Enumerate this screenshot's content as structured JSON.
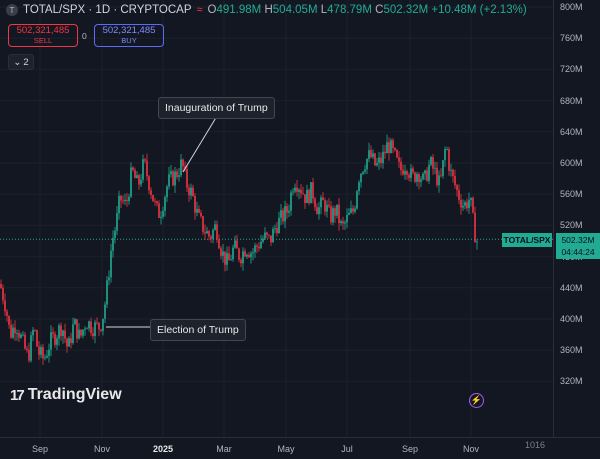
{
  "header": {
    "symbol_icon": "T",
    "title": "TOTAL/SPX · 1D · CRYPTOCAP",
    "wave_icon": "≈",
    "open_label": "O",
    "open": "491.98M",
    "high_label": "H",
    "high": "504.05M",
    "low_label": "L",
    "low": "478.79M",
    "close_label": "C",
    "close": "502.32M",
    "change": "+10.48M (+2.13%)"
  },
  "trade": {
    "sell_price": "502,321,485",
    "sell_label": "SELL",
    "spread": "0",
    "buy_price": "502,321,485",
    "buy_label": "BUY"
  },
  "indicators_toggle": "2",
  "annotations": {
    "inauguration": "Inauguration of Trump",
    "election": "Election of Trump"
  },
  "price_axis": {
    "ticks": [
      "800M",
      "760M",
      "720M",
      "680M",
      "640M",
      "600M",
      "560M",
      "520M",
      "480M",
      "440M",
      "400M",
      "360M",
      "320M"
    ],
    "symbol_label": "TOTAL/SPX",
    "current_price": "502.32M",
    "countdown": "04:44:24"
  },
  "time_axis": {
    "ticks": [
      "Sep",
      "Nov",
      "2025",
      "Mar",
      "May",
      "Jul",
      "Sep",
      "Nov"
    ]
  },
  "logo": {
    "text": "TradingView",
    "mark": "17"
  },
  "corner_mark": "1016",
  "colors": {
    "up": "#22ab94",
    "down": "#f23645",
    "background": "#131722",
    "accent": "#2962ff"
  },
  "chart_data": {
    "type": "candlestick",
    "ylim": [
      310,
      800
    ],
    "y_ticks": [
      320,
      360,
      400,
      440,
      480,
      520,
      560,
      600,
      640,
      680,
      720,
      760,
      800
    ],
    "x_ticks": [
      "Sep",
      "Nov",
      "2025",
      "Mar",
      "May",
      "Jul",
      "Sep",
      "Nov"
    ],
    "last_price": 502.32,
    "anchors": [
      [
        0,
        445
      ],
      [
        6,
        415
      ],
      [
        10,
        380
      ],
      [
        16,
        395
      ],
      [
        22,
        372
      ],
      [
        28,
        350
      ],
      [
        34,
        390
      ],
      [
        38,
        358
      ],
      [
        44,
        348
      ],
      [
        50,
        370
      ],
      [
        56,
        380
      ],
      [
        62,
        392
      ],
      [
        68,
        360
      ],
      [
        74,
        395
      ],
      [
        80,
        375
      ],
      [
        86,
        398
      ],
      [
        92,
        390
      ],
      [
        100,
        390
      ],
      [
        104,
        410
      ],
      [
        108,
        450
      ],
      [
        112,
        500
      ],
      [
        116,
        520
      ],
      [
        120,
        555
      ],
      [
        126,
        545
      ],
      [
        132,
        590
      ],
      [
        138,
        570
      ],
      [
        144,
        600
      ],
      [
        150,
        570
      ],
      [
        156,
        540
      ],
      [
        160,
        535
      ],
      [
        168,
        575
      ],
      [
        176,
        585
      ],
      [
        182,
        600
      ],
      [
        186,
        575
      ],
      [
        192,
        560
      ],
      [
        198,
        530
      ],
      [
        204,
        515
      ],
      [
        210,
        505
      ],
      [
        216,
        520
      ],
      [
        222,
        485
      ],
      [
        228,
        470
      ],
      [
        234,
        492
      ],
      [
        240,
        480
      ],
      [
        246,
        492
      ],
      [
        252,
        485
      ],
      [
        258,
        495
      ],
      [
        264,
        505
      ],
      [
        270,
        500
      ],
      [
        276,
        520
      ],
      [
        282,
        530
      ],
      [
        288,
        540
      ],
      [
        294,
        580
      ],
      [
        300,
        570
      ],
      [
        306,
        555
      ],
      [
        312,
        565
      ],
      [
        318,
        540
      ],
      [
        324,
        550
      ],
      [
        330,
        530
      ],
      [
        336,
        540
      ],
      [
        342,
        515
      ],
      [
        348,
        530
      ],
      [
        354,
        540
      ],
      [
        358,
        580
      ],
      [
        364,
        600
      ],
      [
        370,
        610
      ],
      [
        376,
        595
      ],
      [
        382,
        605
      ],
      [
        388,
        625
      ],
      [
        394,
        610
      ],
      [
        400,
        590
      ],
      [
        406,
        600
      ],
      [
        412,
        580
      ],
      [
        418,
        590
      ],
      [
        424,
        575
      ],
      [
        430,
        600
      ],
      [
        436,
        585
      ],
      [
        440,
        570
      ],
      [
        446,
        625
      ],
      [
        450,
        590
      ],
      [
        454,
        575
      ],
      [
        458,
        560
      ],
      [
        464,
        545
      ],
      [
        470,
        555
      ],
      [
        474,
        515
      ],
      [
        477,
        500
      ]
    ],
    "wicks": {
      "from": "",
      "to": ""
    }
  }
}
